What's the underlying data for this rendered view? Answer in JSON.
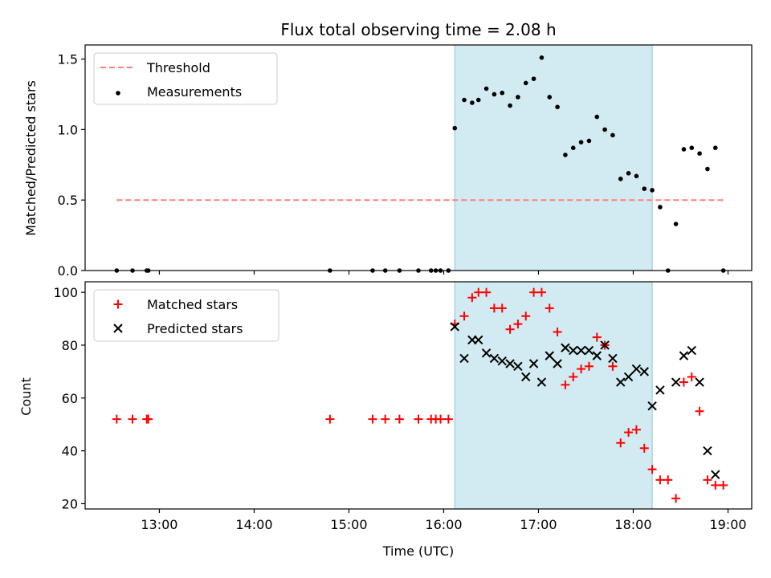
{
  "chart_data": [
    {
      "type": "scatter",
      "title": "Flux total observing time = 2.08 h",
      "xlabel": "",
      "ylabel": "Matched/Predicted stars",
      "xlim": [
        "12:13",
        "19:15"
      ],
      "ylim": [
        0,
        1.6
      ],
      "yticks": [
        "0.0",
        "0.5",
        "1.0",
        "1.5"
      ],
      "shaded_span": {
        "start": "16:07",
        "end": "18:12",
        "color": "#add8e6"
      },
      "threshold": {
        "name": "Threshold",
        "value": 0.5,
        "x_start": "12:33",
        "x_end": "18:57",
        "color": "#ff7f7f",
        "style": "dashed"
      },
      "legend": {
        "placement": "upper left",
        "entries": [
          "Threshold",
          "Measurements"
        ]
      },
      "series": [
        {
          "name": "Measurements",
          "color": "#000000",
          "marker": "dot",
          "points": [
            [
              "12:33",
              0
            ],
            [
              "12:43",
              0
            ],
            [
              "12:52",
              0
            ],
            [
              "12:53",
              0
            ],
            [
              "14:48",
              0
            ],
            [
              "15:15",
              0
            ],
            [
              "15:23",
              0
            ],
            [
              "15:32",
              0
            ],
            [
              "15:44",
              0
            ],
            [
              "15:52",
              0
            ],
            [
              "15:55",
              0
            ],
            [
              "15:58",
              0
            ],
            [
              "16:03",
              0
            ],
            [
              "16:07",
              1.01
            ],
            [
              "16:13",
              1.21
            ],
            [
              "16:18",
              1.19
            ],
            [
              "16:22",
              1.21
            ],
            [
              "16:27",
              1.29
            ],
            [
              "16:32",
              1.25
            ],
            [
              "16:37",
              1.26
            ],
            [
              "16:42",
              1.17
            ],
            [
              "16:47",
              1.23
            ],
            [
              "16:52",
              1.33
            ],
            [
              "16:57",
              1.36
            ],
            [
              "17:02",
              1.51
            ],
            [
              "17:07",
              1.23
            ],
            [
              "17:12",
              1.16
            ],
            [
              "17:17",
              0.82
            ],
            [
              "17:22",
              0.87
            ],
            [
              "17:27",
              0.91
            ],
            [
              "17:32",
              0.92
            ],
            [
              "17:37",
              1.09
            ],
            [
              "17:42",
              1.0
            ],
            [
              "17:47",
              0.96
            ],
            [
              "17:52",
              0.65
            ],
            [
              "17:57",
              0.69
            ],
            [
              "18:02",
              0.67
            ],
            [
              "18:07",
              0.58
            ],
            [
              "18:12",
              0.57
            ],
            [
              "18:17",
              0.45
            ],
            [
              "18:22",
              0
            ],
            [
              "18:27",
              0.33
            ],
            [
              "18:32",
              0.86
            ],
            [
              "18:37",
              0.87
            ],
            [
              "18:42",
              0.83
            ],
            [
              "18:47",
              0.72
            ],
            [
              "18:52",
              0.87
            ],
            [
              "18:57",
              0
            ]
          ]
        }
      ]
    },
    {
      "type": "scatter",
      "title": "",
      "xlabel": "Time (UTC)",
      "ylabel": "Count",
      "xlim": [
        "12:13",
        "19:15"
      ],
      "ylim": [
        18,
        104
      ],
      "xticks": [
        "13:00",
        "14:00",
        "15:00",
        "16:00",
        "17:00",
        "18:00",
        "19:00"
      ],
      "yticks": [
        "20",
        "40",
        "60",
        "80",
        "100"
      ],
      "shaded_span": {
        "start": "16:07",
        "end": "18:12",
        "color": "#add8e6"
      },
      "legend": {
        "placement": "upper left",
        "entries": [
          "Matched stars",
          "Predicted stars"
        ]
      },
      "series": [
        {
          "name": "Matched stars",
          "color": "#ff0000",
          "marker": "plus",
          "points": [
            [
              "12:33",
              52
            ],
            [
              "12:43",
              52
            ],
            [
              "12:52",
              52
            ],
            [
              "12:53",
              52
            ],
            [
              "14:48",
              52
            ],
            [
              "15:15",
              52
            ],
            [
              "15:23",
              52
            ],
            [
              "15:32",
              52
            ],
            [
              "15:44",
              52
            ],
            [
              "15:52",
              52
            ],
            [
              "15:55",
              52
            ],
            [
              "15:58",
              52
            ],
            [
              "16:03",
              52
            ],
            [
              "16:07",
              88
            ],
            [
              "16:13",
              91
            ],
            [
              "16:18",
              98
            ],
            [
              "16:22",
              100
            ],
            [
              "16:27",
              100
            ],
            [
              "16:32",
              94
            ],
            [
              "16:37",
              94
            ],
            [
              "16:42",
              86
            ],
            [
              "16:47",
              88
            ],
            [
              "16:52",
              91
            ],
            [
              "16:57",
              100
            ],
            [
              "17:02",
              100
            ],
            [
              "17:07",
              94
            ],
            [
              "17:12",
              85
            ],
            [
              "17:17",
              65
            ],
            [
              "17:22",
              68
            ],
            [
              "17:27",
              71
            ],
            [
              "17:32",
              72
            ],
            [
              "17:37",
              83
            ],
            [
              "17:42",
              80
            ],
            [
              "17:47",
              72
            ],
            [
              "17:52",
              43
            ],
            [
              "17:57",
              47
            ],
            [
              "18:02",
              48
            ],
            [
              "18:07",
              41
            ],
            [
              "18:12",
              33
            ],
            [
              "18:17",
              29
            ],
            [
              "18:22",
              29
            ],
            [
              "18:27",
              22
            ],
            [
              "18:32",
              66
            ],
            [
              "18:37",
              68
            ],
            [
              "18:42",
              55
            ],
            [
              "18:47",
              29
            ],
            [
              "18:52",
              27
            ],
            [
              "18:57",
              27
            ]
          ]
        },
        {
          "name": "Predicted stars",
          "color": "#000000",
          "marker": "x",
          "points": [
            [
              "16:07",
              87
            ],
            [
              "16:13",
              75
            ],
            [
              "16:18",
              82
            ],
            [
              "16:22",
              82
            ],
            [
              "16:27",
              77
            ],
            [
              "16:32",
              75
            ],
            [
              "16:37",
              74
            ],
            [
              "16:42",
              73
            ],
            [
              "16:47",
              72
            ],
            [
              "16:52",
              68
            ],
            [
              "16:57",
              73
            ],
            [
              "17:02",
              66
            ],
            [
              "17:07",
              76
            ],
            [
              "17:12",
              73
            ],
            [
              "17:17",
              79
            ],
            [
              "17:22",
              78
            ],
            [
              "17:27",
              78
            ],
            [
              "17:32",
              78
            ],
            [
              "17:37",
              76
            ],
            [
              "17:42",
              80
            ],
            [
              "17:47",
              75
            ],
            [
              "17:52",
              66
            ],
            [
              "17:57",
              68
            ],
            [
              "18:02",
              71
            ],
            [
              "18:07",
              70
            ],
            [
              "18:12",
              57
            ],
            [
              "18:17",
              63
            ],
            [
              "18:27",
              66
            ],
            [
              "18:32",
              76
            ],
            [
              "18:37",
              78
            ],
            [
              "18:42",
              66
            ],
            [
              "18:47",
              40
            ],
            [
              "18:52",
              31
            ]
          ]
        }
      ]
    }
  ]
}
